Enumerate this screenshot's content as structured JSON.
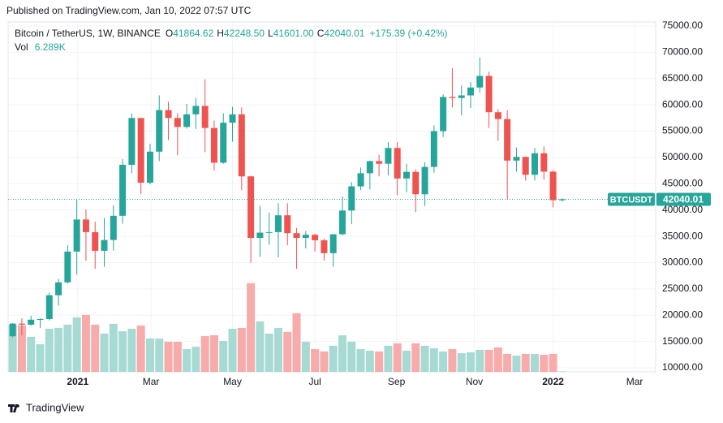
{
  "header": {
    "published": "Published on TradingView.com, Jan 10, 2022 07:57 UTC",
    "symbol": "Bitcoin / TetherUS, 1W, BINANCE",
    "ohlc": [
      {
        "key": "O",
        "value": "41864.62"
      },
      {
        "key": "H",
        "value": "42248.50"
      },
      {
        "key": "L",
        "value": "41601.00"
      },
      {
        "key": "C",
        "value": "42040.01"
      }
    ],
    "change": "+175.39 (+0.42%)",
    "volume_key": "Vol",
    "volume": "6.289K"
  },
  "footer": {
    "brand": "TradingView"
  },
  "chart_data": {
    "type": "candlestick",
    "xlim": [
      -0.5,
      70.2
    ],
    "xticks": [
      {
        "value": 7.1,
        "label": "2021"
      },
      {
        "value": 15.1,
        "label": "Mar"
      },
      {
        "value": 24,
        "label": "May"
      },
      {
        "value": 33,
        "label": "Jul"
      },
      {
        "value": 41.9,
        "label": "Sep"
      },
      {
        "value": 50.4,
        "label": "Nov"
      },
      {
        "value": 59,
        "label": "2022"
      },
      {
        "value": 67.9,
        "label": "Mar"
      }
    ],
    "ylim": [
      9230,
      75770
    ],
    "yticks": [
      {
        "value": 10000,
        "label": "10000.00"
      },
      {
        "value": 15000,
        "label": "15000.00"
      },
      {
        "value": 20000,
        "label": "20000.00"
      },
      {
        "value": 25000,
        "label": "25000.00"
      },
      {
        "value": 30000,
        "label": "30000.00"
      },
      {
        "value": 35000,
        "label": "35000.00"
      },
      {
        "value": 40000,
        "label": "40000.00"
      },
      {
        "value": 45000,
        "label": "45000.00"
      },
      {
        "value": 50000,
        "label": "50000.00"
      },
      {
        "value": 55000,
        "label": "55000.00"
      },
      {
        "value": 60000,
        "label": "60000.00"
      },
      {
        "value": 65000,
        "label": "65000.00"
      },
      {
        "value": 70000,
        "label": "70000.00"
      },
      {
        "value": 75000,
        "label": "75000.00"
      }
    ],
    "y2lim": [
      0,
      4000000
    ],
    "open": [
      16000,
      18400,
      18200,
      19150,
      19270,
      23800,
      26250,
      32100,
      38200,
      35800,
      32250,
      34300,
      38900,
      48600,
      57500,
      45200,
      51100,
      59000,
      57500,
      55800,
      58200,
      59800,
      55600,
      49000,
      56600,
      58200,
      46400,
      34700,
      35700,
      35800,
      39000,
      35600,
      34700,
      35300,
      34250,
      31800,
      35400,
      39900,
      44500,
      47000,
      49300,
      48800,
      51800,
      46000,
      47260,
      43000,
      48200,
      55000,
      61500,
      61300,
      61800,
      63300,
      65500,
      58600,
      57300,
      49400,
      50100,
      46700,
      50800,
      47300,
      41864.62
    ],
    "high": [
      18500,
      19400,
      19900,
      19400,
      24300,
      26900,
      33300,
      42000,
      40100,
      37800,
      38500,
      40900,
      49700,
      58350,
      57500,
      52600,
      61800,
      60600,
      58400,
      60200,
      61300,
      64850,
      57000,
      58400,
      59600,
      59500,
      46500,
      40800,
      39500,
      41300,
      41300,
      36600,
      36000,
      35500,
      34600,
      35400,
      42600,
      45300,
      48100,
      49400,
      50500,
      52900,
      52900,
      48800,
      47700,
      49100,
      56100,
      62000,
      67000,
      63700,
      64300,
      69000,
      66300,
      59200,
      59000,
      51900,
      50200,
      51800,
      52100,
      47600,
      42248.5
    ],
    "low": [
      15800,
      16200,
      18000,
      17600,
      19000,
      21800,
      26000,
      27700,
      30400,
      28800,
      29200,
      32300,
      37400,
      47000,
      43000,
      44900,
      49300,
      53300,
      50400,
      55500,
      55400,
      51000,
      47500,
      48800,
      53000,
      43800,
      30000,
      31100,
      33400,
      31000,
      33300,
      28800,
      32700,
      32100,
      30400,
      29200,
      35200,
      37300,
      43800,
      43900,
      46400,
      46600,
      42800,
      43400,
      39600,
      40800,
      47100,
      53900,
      59500,
      58000,
      59400,
      62300,
      55600,
      53200,
      42000,
      47300,
      45600,
      45600,
      45800,
      40500,
      41601
    ],
    "close": [
      18400,
      18200,
      19150,
      19270,
      23800,
      26250,
      32100,
      38200,
      35800,
      32250,
      34300,
      38900,
      48600,
      57500,
      45200,
      51100,
      59000,
      57500,
      55800,
      58200,
      59800,
      55600,
      49000,
      56600,
      58200,
      46400,
      34700,
      35700,
      35800,
      39000,
      35600,
      34700,
      35300,
      34250,
      31800,
      35400,
      39900,
      44500,
      47000,
      49300,
      48800,
      51800,
      46000,
      47260,
      43000,
      48200,
      55000,
      61500,
      61300,
      61800,
      63300,
      65500,
      58600,
      57300,
      49400,
      50100,
      46700,
      50800,
      47300,
      41864.62,
      42040.01
    ],
    "volume": [
      539000,
      530000,
      400000,
      316000,
      493000,
      502000,
      539000,
      623000,
      651000,
      539000,
      437000,
      549000,
      465000,
      493000,
      530000,
      381000,
      381000,
      344000,
      344000,
      260000,
      288000,
      409000,
      419000,
      353000,
      493000,
      502000,
      1014000,
      577000,
      437000,
      502000,
      456000,
      670000,
      344000,
      260000,
      233000,
      298000,
      419000,
      344000,
      260000,
      242000,
      233000,
      298000,
      326000,
      242000,
      326000,
      298000,
      270000,
      233000,
      260000,
      214000,
      223000,
      251000,
      251000,
      279000,
      205000,
      186000,
      205000,
      205000,
      195000,
      205000,
      6289
    ],
    "up_color": "#26a69a",
    "down_color": "#ef5350",
    "up_volume_color": "#a8dad4",
    "down_volume_color": "#f7abaa",
    "grid": true,
    "symbol_tag": "BTCUSDT",
    "last_price_label": "42040.01"
  }
}
